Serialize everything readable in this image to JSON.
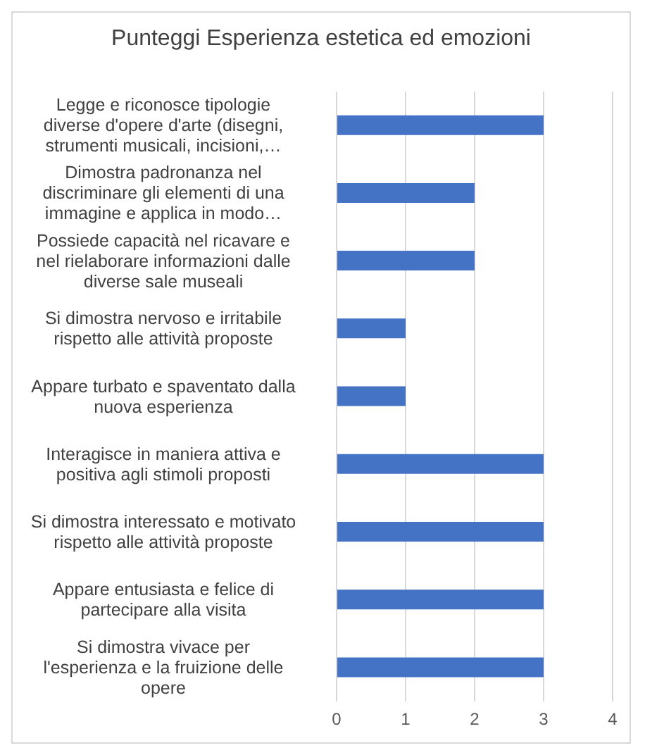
{
  "chart_data": {
    "type": "bar",
    "orientation": "horizontal",
    "title": "Punteggi Esperienza estetica ed emozioni",
    "categories": [
      "Legge e riconosce tipologie diverse d'opere d'arte (disegni, strumenti musicali, incisioni,…",
      "Dimostra padronanza nel discriminare gli elementi di una immagine e applica in modo…",
      "Possiede capacità nel ricavare e nel rielaborare informazioni dalle diverse sale museali",
      "Si dimostra nervoso e irritabile rispetto alle attività proposte",
      "Appare turbato e spaventato dalla nuova esperienza",
      "Interagisce in maniera attiva e positiva agli stimoli proposti",
      "Si dimostra interessato e motivato rispetto alle attività proposte",
      "Appare entusiasta e felice di partecipare alla visita",
      "Si dimostra vivace per l'esperienza e la fruizione delle opere"
    ],
    "values": [
      3,
      2,
      2,
      1,
      1,
      3,
      3,
      3,
      3
    ],
    "color": "#4472c4",
    "xlim": [
      0,
      4
    ],
    "xticks": [
      0,
      1,
      2,
      3,
      4
    ],
    "grid": "x"
  }
}
